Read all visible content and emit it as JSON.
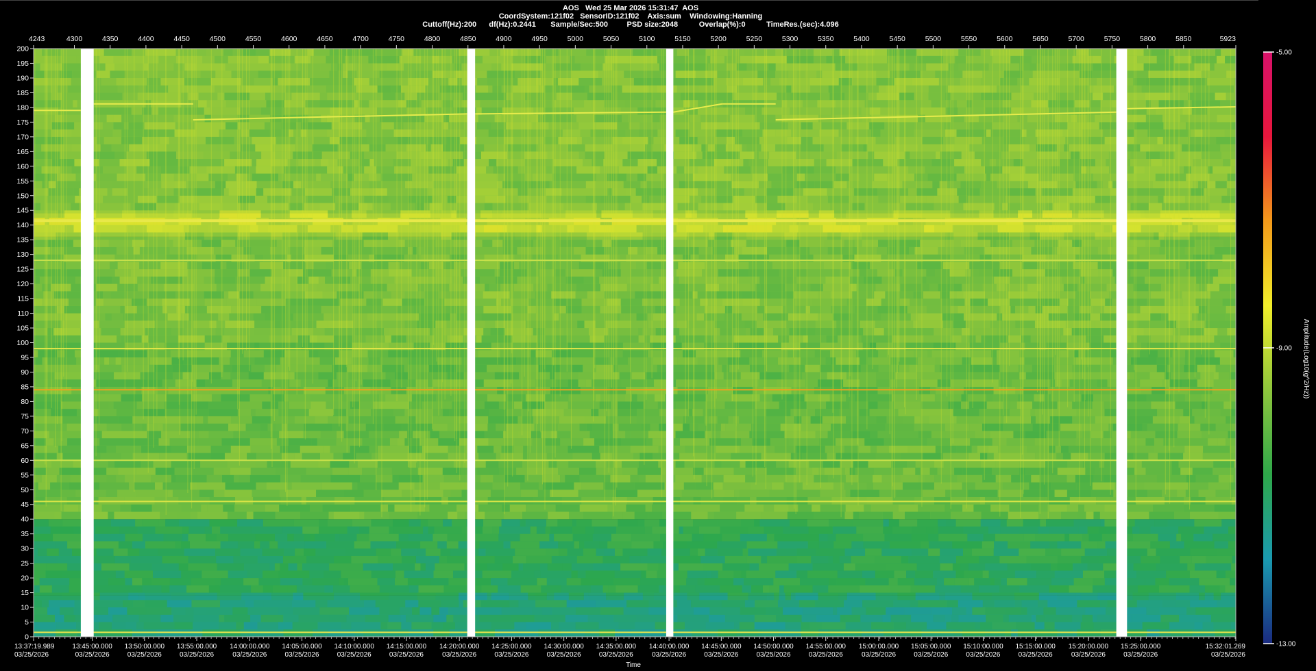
{
  "header": {
    "title": "AOS   Wed 25 Mar 2026 15:31:47  AOS",
    "line2": "CoordSystem:121f02   SensorID:121f02    Axis:sum    Windowing:Hanning",
    "line3": "Cuttoff(Hz):200      df(Hz):0.2441       Sample/Sec:500         PSD size:2048          Overlap(%):0          TimeRes.(sec):4.096"
  },
  "chart_data": {
    "type": "heatmap",
    "title": "AOS   Wed 25 Mar 2026 15:31:47  AOS",
    "xlabel": "Time",
    "ylabel": "",
    "colorbar_label": "Amplitude(Log10(g^2/Hz))",
    "ylim": [
      0,
      200
    ],
    "y_ticks": [
      0,
      5,
      10,
      15,
      20,
      25,
      30,
      35,
      40,
      45,
      50,
      55,
      60,
      65,
      70,
      75,
      80,
      85,
      90,
      95,
      100,
      105,
      110,
      115,
      120,
      125,
      130,
      135,
      140,
      145,
      150,
      155,
      160,
      165,
      170,
      175,
      180,
      185,
      190,
      195,
      200
    ],
    "x_index_range": [
      4243,
      5923
    ],
    "x_top_ticks": [
      4243,
      4300,
      4350,
      4400,
      4450,
      4500,
      4550,
      4600,
      4650,
      4700,
      4750,
      4800,
      4850,
      4900,
      4950,
      5000,
      5050,
      5100,
      5150,
      5200,
      5250,
      5300,
      5350,
      5400,
      5450,
      5500,
      5550,
      5600,
      5650,
      5700,
      5750,
      5800,
      5850,
      5923
    ],
    "time_ticks": [
      {
        "index": 4243,
        "time": "13:37:19.989",
        "date": "03/25/2026"
      },
      {
        "index": 4325,
        "time": "13:45:00.000",
        "date": "03/25/2026"
      },
      {
        "index": 4398,
        "time": "13:50:00.000",
        "date": "03/25/2026"
      },
      {
        "index": 4471,
        "time": "13:55:00.000",
        "date": "03/25/2026"
      },
      {
        "index": 4545,
        "time": "14:00:00.000",
        "date": "03/25/2026"
      },
      {
        "index": 4618,
        "time": "14:05:00.000",
        "date": "03/25/2026"
      },
      {
        "index": 4691,
        "time": "14:10:00.000",
        "date": "03/25/2026"
      },
      {
        "index": 4764,
        "time": "14:15:00.000",
        "date": "03/25/2026"
      },
      {
        "index": 4838,
        "time": "14:20:00.000",
        "date": "03/25/2026"
      },
      {
        "index": 4911,
        "time": "14:25:00.000",
        "date": "03/25/2026"
      },
      {
        "index": 4984,
        "time": "14:30:00.000",
        "date": "03/25/2026"
      },
      {
        "index": 5057,
        "time": "14:35:00.000",
        "date": "03/25/2026"
      },
      {
        "index": 5131,
        "time": "14:40:00.000",
        "date": "03/25/2026"
      },
      {
        "index": 5204,
        "time": "14:45:00.000",
        "date": "03/25/2026"
      },
      {
        "index": 5277,
        "time": "14:50:00.000",
        "date": "03/25/2026"
      },
      {
        "index": 5350,
        "time": "14:55:00.000",
        "date": "03/25/2026"
      },
      {
        "index": 5424,
        "time": "15:00:00.000",
        "date": "03/25/2026"
      },
      {
        "index": 5497,
        "time": "15:05:00.000",
        "date": "03/25/2026"
      },
      {
        "index": 5570,
        "time": "15:10:00.000",
        "date": "03/25/2026"
      },
      {
        "index": 5643,
        "time": "15:15:00.000",
        "date": "03/25/2026"
      },
      {
        "index": 5717,
        "time": "15:20:00.000",
        "date": "03/25/2026"
      },
      {
        "index": 5790,
        "time": "15:25:00.000",
        "date": "03/25/2026"
      },
      {
        "index": 5923,
        "time": "15:32:01.269",
        "date": "03/25/2026"
      }
    ],
    "colorbar": {
      "min": -13.0,
      "max": -5.0,
      "tick_labels": [
        "-5.00",
        "-9.00",
        "-13.00"
      ],
      "colors": [
        "#1a2a80",
        "#1a9ab0",
        "#2ea84a",
        "#8ec63c",
        "#f2ee2a",
        "#f49a1a",
        "#e8163c",
        "#d8126a"
      ]
    },
    "gaps_index": [
      [
        4309,
        4327
      ],
      [
        4849,
        4860
      ],
      [
        5127,
        5137
      ],
      [
        5756,
        5771
      ]
    ],
    "persistent_lines_hz": [
      {
        "hz": 1.5,
        "color": "#f2e84a"
      },
      {
        "hz": 46,
        "color": "#d8e446"
      },
      {
        "hz": 60,
        "color": "#c8e04a"
      },
      {
        "hz": 84,
        "color": "#f0a020"
      },
      {
        "hz": 98,
        "color": "#e6e84a"
      },
      {
        "hz": 128,
        "color": "#c8e04a"
      },
      {
        "hz": 141.5,
        "color": "#e8e84a"
      }
    ],
    "drifting_line_segments": [
      {
        "x": [
          4243,
          4309
        ],
        "hz": [
          179.0,
          179.0
        ]
      },
      {
        "x": [
          4327,
          4466
        ],
        "hz": [
          181.2,
          181.2
        ]
      },
      {
        "x": [
          4466,
          4849
        ],
        "hz": [
          175.8,
          177.8
        ]
      },
      {
        "x": [
          4860,
          5127
        ],
        "hz": [
          177.8,
          178.4
        ]
      },
      {
        "x": [
          5137,
          5205
        ],
        "hz": [
          178.4,
          181.2
        ]
      },
      {
        "x": [
          5205,
          5280
        ],
        "hz": [
          181.2,
          181.2
        ]
      },
      {
        "x": [
          5280,
          5756
        ],
        "hz": [
          175.8,
          178.4
        ]
      },
      {
        "x": [
          5771,
          5923
        ],
        "hz": [
          179.6,
          180.2
        ]
      }
    ],
    "bands": [
      {
        "hz": [
          0,
          14
        ],
        "level": -11.2
      },
      {
        "hz": [
          14,
          40
        ],
        "level": -10.8
      },
      {
        "hz": [
          40,
          100
        ],
        "level": -10.0
      },
      {
        "hz": [
          100,
          136
        ],
        "level": -9.8
      },
      {
        "hz": [
          136,
          144
        ],
        "level": -9.0
      },
      {
        "hz": [
          144,
          200
        ],
        "level": -9.7
      }
    ],
    "grid": false,
    "legend": "colorbar-right"
  }
}
